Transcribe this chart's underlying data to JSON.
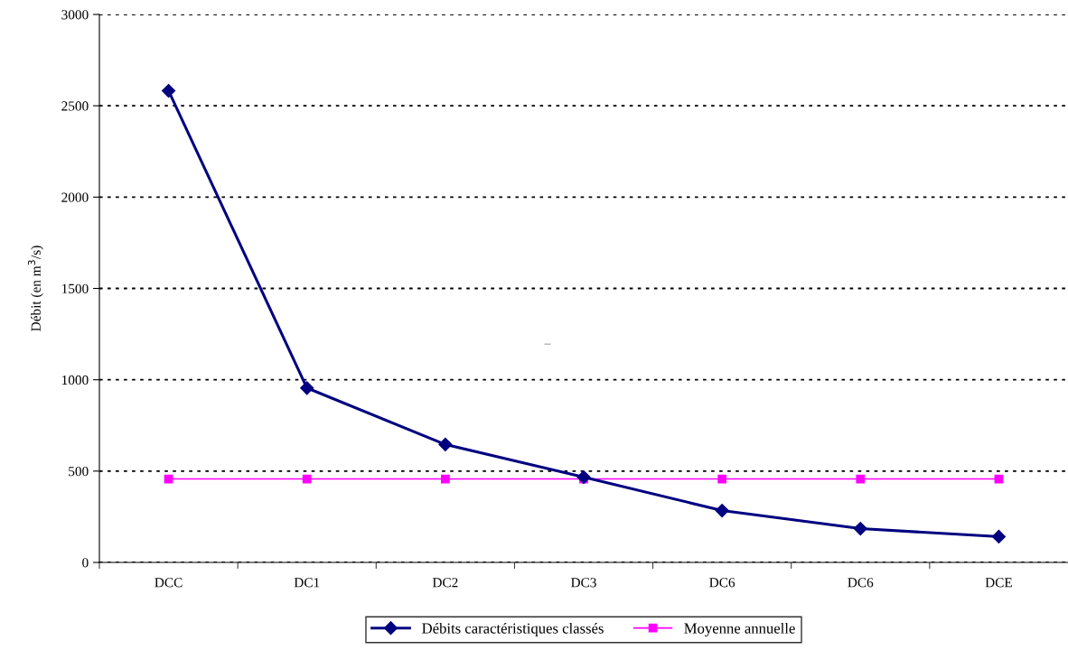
{
  "chart_data": {
    "type": "line",
    "ylabel": "Débit (en m$^{3}$/s)",
    "categories": [
      "DCC",
      "DC1",
      "DC2",
      "DC3",
      "DC6",
      "DC6",
      "DCE"
    ],
    "series": [
      {
        "name": "Débits caractéristiques classés",
        "color": "#000080",
        "marker": "diamond",
        "values": [
          2582,
          955,
          646,
          467,
          284,
          185,
          141
        ]
      },
      {
        "name": "Moyenne annuelle",
        "color": "#ff00ff",
        "marker": "square",
        "values": [
          457,
          457,
          457,
          457,
          457,
          457,
          457
        ]
      }
    ],
    "ylim": [
      0,
      3000
    ],
    "yticks": [
      0,
      500,
      1000,
      1500,
      2000,
      2500,
      3000
    ],
    "grid": "y",
    "legend": "bottom",
    "line_style": "solid",
    "annotations": [
      "–"
    ]
  }
}
